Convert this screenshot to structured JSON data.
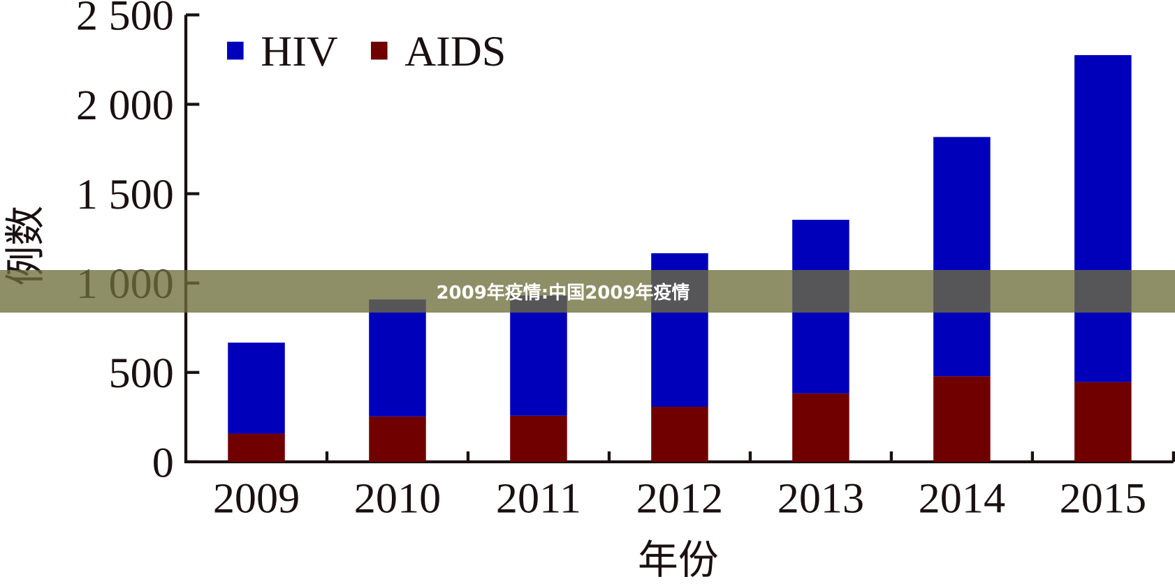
{
  "banner": {
    "title": "2009年疫情:中国2009年疫情"
  },
  "chart_data": {
    "type": "bar",
    "stacked": true,
    "title": "",
    "xlabel": "年份",
    "ylabel": "例数",
    "categories": [
      "2009",
      "2010",
      "2011",
      "2012",
      "2013",
      "2014",
      "2015"
    ],
    "series": [
      {
        "name": "AIDS",
        "color": "#700000",
        "values": [
          158,
          254,
          258,
          308,
          383,
          479,
          446
        ]
      },
      {
        "name": "HIV",
        "color": "#0000bb",
        "values": [
          509,
          654,
          672,
          859,
          971,
          1338,
          1829
        ]
      }
    ],
    "ylim": [
      0,
      2500
    ],
    "yticks": [
      0,
      500,
      1000,
      1500,
      2000,
      2500
    ],
    "ytick_labels": [
      "0",
      "500",
      "1 000",
      "1 500",
      "2 000",
      "2 500"
    ],
    "grid": false,
    "legend_placement": "top-left"
  }
}
